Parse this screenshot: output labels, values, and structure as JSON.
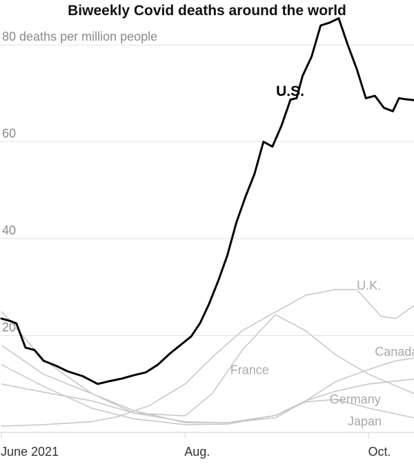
{
  "chart_data": {
    "type": "line",
    "title": "Biweekly Covid deaths around the world",
    "y_unit_label": "80 deaths per million people",
    "ylim": [
      0,
      85
    ],
    "y_ticks": [
      {
        "value": 20,
        "label": "20"
      },
      {
        "value": 40,
        "label": "40"
      },
      {
        "value": 60,
        "label": "60"
      },
      {
        "value": 80,
        "label": "80 deaths per million people"
      }
    ],
    "xlim": [
      "2021-06-01",
      "2021-10-16"
    ],
    "x_ticks": [
      {
        "value": "2021-06-01",
        "label": "June 2021"
      },
      {
        "value": "2021-08-01",
        "label": "Aug."
      },
      {
        "value": "2021-10-01",
        "label": "Oct."
      }
    ],
    "grid": true,
    "series": [
      {
        "name": "U.S.",
        "highlight": true,
        "x": [
          "2021-06-01",
          "2021-06-04",
          "2021-06-06",
          "2021-06-09",
          "2021-06-12",
          "2021-06-15",
          "2021-06-19",
          "2021-06-23",
          "2021-06-28",
          "2021-07-03",
          "2021-07-07",
          "2021-07-11",
          "2021-07-15",
          "2021-07-19",
          "2021-07-23",
          "2021-07-27",
          "2021-07-31",
          "2021-08-03",
          "2021-08-06",
          "2021-08-09",
          "2021-08-12",
          "2021-08-15",
          "2021-08-18",
          "2021-08-21",
          "2021-08-24",
          "2021-08-27",
          "2021-08-30",
          "2021-09-02",
          "2021-09-05",
          "2021-09-07",
          "2021-09-09",
          "2021-09-12",
          "2021-09-15",
          "2021-09-18",
          "2021-09-21",
          "2021-09-24",
          "2021-09-27",
          "2021-09-30",
          "2021-10-03",
          "2021-10-06",
          "2021-10-09",
          "2021-10-11",
          "2021-10-13",
          "2021-10-16"
        ],
        "values": [
          23.5,
          23.0,
          22.5,
          17.5,
          17.0,
          14.8,
          13.8,
          12.6,
          11.6,
          10.0,
          10.6,
          11.1,
          11.8,
          12.4,
          14.0,
          16.3,
          18.3,
          19.8,
          22.6,
          26.6,
          31.3,
          36.5,
          43.3,
          48.6,
          53.3,
          60.0,
          59.0,
          63.3,
          68.7,
          69.0,
          73.6,
          77.6,
          84.0,
          84.6,
          85.5,
          80.0,
          75.0,
          69.0,
          69.5,
          67.0,
          66.3,
          69.0,
          68.8,
          68.6
        ]
      },
      {
        "name": "U.K.",
        "x": [
          "2021-06-01",
          "2021-06-15",
          "2021-07-01",
          "2021-07-10",
          "2021-07-20",
          "2021-08-01",
          "2021-08-10",
          "2021-08-20",
          "2021-08-30",
          "2021-09-10",
          "2021-09-20",
          "2021-09-27",
          "2021-10-05",
          "2021-10-10",
          "2021-10-16"
        ],
        "values": [
          1.3,
          1.6,
          2.2,
          3.3,
          5.5,
          10.0,
          15.5,
          21.0,
          24.5,
          28.3,
          29.5,
          29.5,
          24.0,
          23.5,
          26.2
        ]
      },
      {
        "name": "Canada",
        "x": [
          "2021-06-01",
          "2021-06-15",
          "2021-07-01",
          "2021-07-15",
          "2021-08-01",
          "2021-08-15",
          "2021-08-31",
          "2021-09-10",
          "2021-09-20",
          "2021-10-01",
          "2021-10-10",
          "2021-10-16"
        ],
        "values": [
          10.0,
          8.3,
          6.5,
          4.0,
          2.2,
          2.0,
          3.0,
          6.5,
          10.5,
          13.0,
          14.8,
          15.3
        ]
      },
      {
        "name": "France",
        "x": [
          "2021-06-01",
          "2021-06-15",
          "2021-07-01",
          "2021-07-15",
          "2021-08-01",
          "2021-08-10",
          "2021-08-20",
          "2021-08-31",
          "2021-09-10",
          "2021-09-20",
          "2021-10-01",
          "2021-10-16"
        ],
        "values": [
          25.0,
          15.0,
          8.0,
          4.0,
          3.4,
          8.0,
          17.0,
          24.3,
          21.0,
          16.0,
          12.0,
          8.0
        ]
      },
      {
        "name": "Germany",
        "x": [
          "2021-06-01",
          "2021-06-15",
          "2021-07-01",
          "2021-07-15",
          "2021-08-01",
          "2021-08-15",
          "2021-08-31",
          "2021-09-10",
          "2021-09-20",
          "2021-10-01",
          "2021-10-16"
        ],
        "values": [
          14.0,
          9.5,
          5.0,
          2.8,
          1.6,
          1.7,
          3.5,
          6.5,
          8.5,
          10.0,
          11.0
        ]
      },
      {
        "name": "Japan",
        "x": [
          "2021-06-01",
          "2021-06-15",
          "2021-07-01",
          "2021-07-15",
          "2021-08-01",
          "2021-08-15",
          "2021-08-31",
          "2021-09-10",
          "2021-09-20",
          "2021-10-01",
          "2021-10-16"
        ],
        "values": [
          18.0,
          12.0,
          8.0,
          4.5,
          2.0,
          2.0,
          3.5,
          6.3,
          6.8,
          5.0,
          3.0
        ]
      }
    ]
  }
}
